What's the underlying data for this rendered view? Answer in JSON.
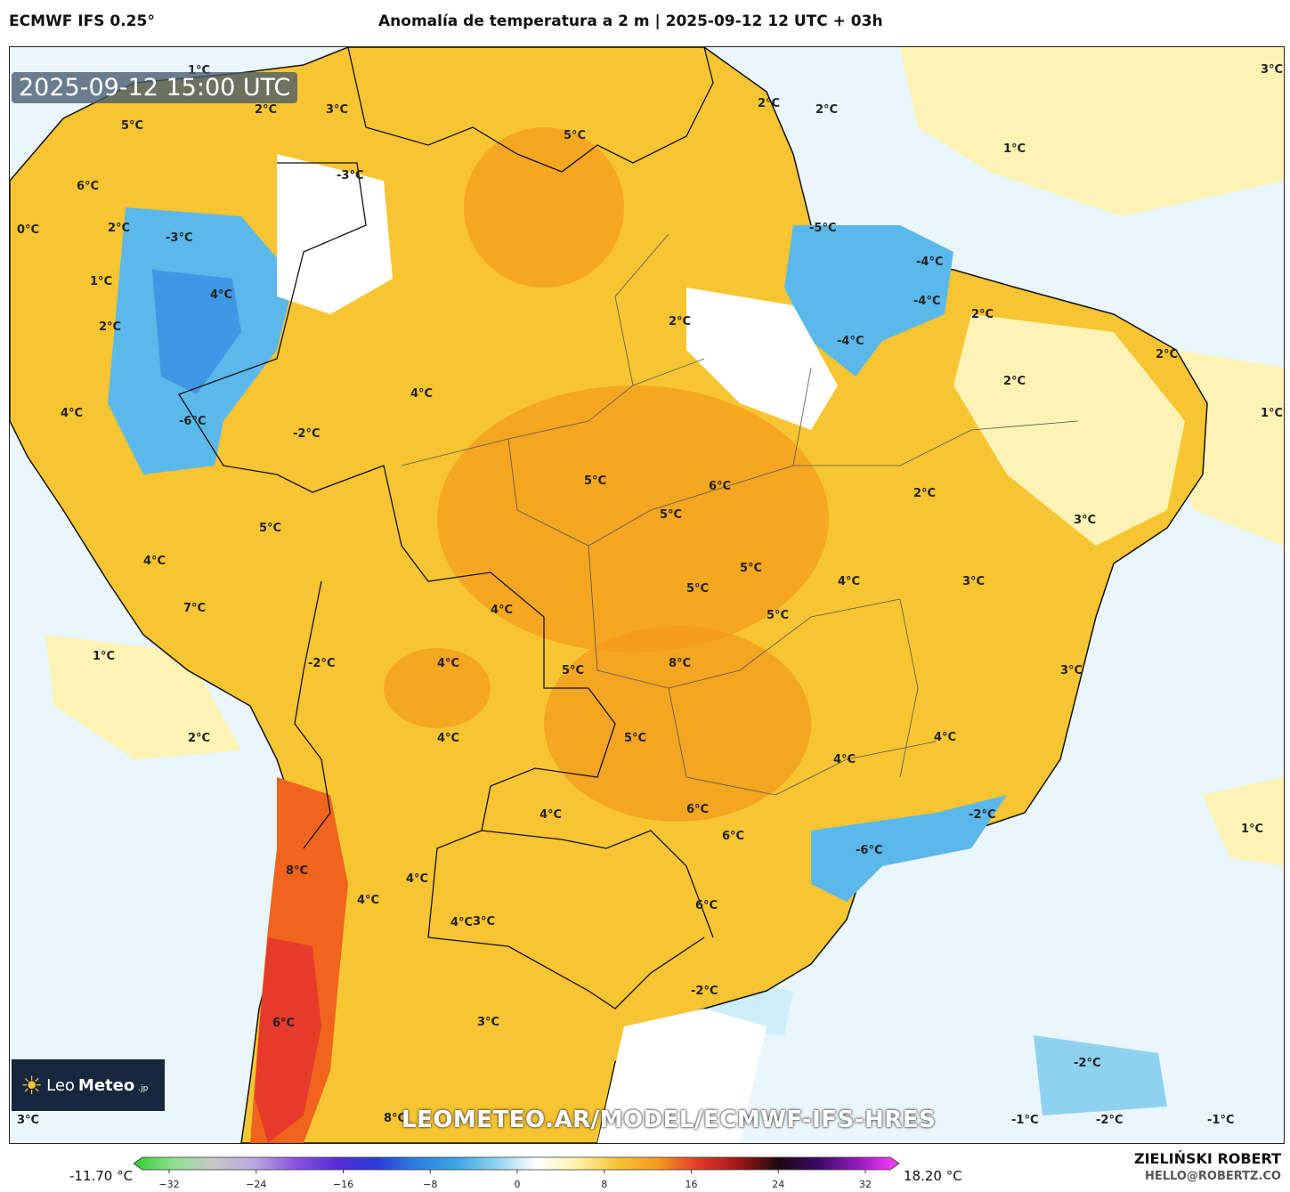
{
  "header": {
    "model": "ECMWF IFS 0.25°",
    "title": "Anomalía de temperatura a 2 m | 2025-09-12 12 UTC + 03h"
  },
  "map": {
    "timestamp": "2025-09-12 15:00 UTC",
    "watermark": "LEOMETEO.AR/MODEL/ECMWF-IFS-HRES",
    "labels": [
      "1°C",
      "5°C",
      "3°C",
      "2°C",
      "5°C",
      "2°C",
      "2°C",
      "-3°C",
      "1°C",
      "6°C",
      "3°C",
      "0°C",
      "2°C",
      "1°C",
      "-5°C",
      "-4°C",
      "-4°C",
      "-4°C",
      "2°C",
      "2°C",
      "1°C",
      "2°C",
      "-3°C",
      "2°C",
      "2°C",
      "4°C",
      "4°C",
      "-2°C",
      "-6°C",
      "4°C",
      "5°C",
      "6°C",
      "5°C",
      "2°C",
      "5°C",
      "5°C",
      "3°C",
      "4°C",
      "4°C",
      "5°C",
      "3°C",
      "5°C",
      "4°C",
      "4°C",
      "7°C",
      "-2°C",
      "1°C",
      "8°C",
      "3°C",
      "5°C",
      "4°C",
      "4°C",
      "2°C",
      "5°C",
      "4°C",
      "4°C",
      "4°C",
      "6°C",
      "-2°C",
      "6°C",
      "-6°C",
      "1°C",
      "8°C",
      "4°C",
      "3°C",
      "4°C",
      "6°C",
      "-2°C",
      "3°C",
      "6°C",
      "-2°C",
      "8°C",
      "3°C",
      "-1°C",
      "-2°C",
      "-1°C"
    ],
    "land_color": "#f7c531",
    "ocean_color": "#e9f6fb",
    "cold_color": "#3ba4e4",
    "hot_color": "#e63a2a"
  },
  "logo": {
    "light": "Leo",
    "bold": "Meteo",
    "suffix": ".jp"
  },
  "colorbar": {
    "min_label": "-11.70 °C",
    "max_label": "18.20 °C",
    "ticks": [
      "−32",
      "−24",
      "−16",
      "−8",
      "0",
      "8",
      "16",
      "24",
      "32"
    ],
    "stops": [
      "#33cc33",
      "#8ee08e",
      "#c8c8c8",
      "#b8a6e0",
      "#8a55e0",
      "#5a2bd8",
      "#2a3bd8",
      "#2b7fe0",
      "#3ba4e4",
      "#8fd2f0",
      "#ffffff",
      "#fff2a8",
      "#f7c531",
      "#f39a1c",
      "#e63a2a",
      "#a01818",
      "#200810",
      "#3a0a6a",
      "#9a1ac0",
      "#ff40ff"
    ]
  },
  "credits": {
    "author": "ZIELIŃSKI ROBERT",
    "email": "HELLO@ROBERTZ.CO"
  }
}
